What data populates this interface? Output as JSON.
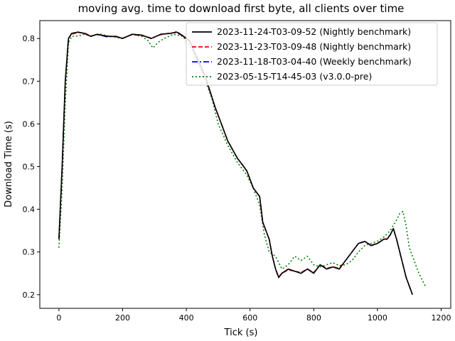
{
  "chart_data": {
    "type": "line",
    "title": "moving avg. time to download first byte, all clients over time",
    "xlabel": "Tick (s)",
    "ylabel": "Download Time (s)",
    "xlim": [
      -60,
      1230
    ],
    "ylim": [
      0.168,
      0.842
    ],
    "x_ticks": [
      0,
      200,
      400,
      600,
      800,
      1000,
      1200
    ],
    "x_tick_labels": [
      "0",
      "200",
      "400",
      "600",
      "800",
      "1000",
      "1200"
    ],
    "y_ticks": [
      0.2,
      0.3,
      0.4,
      0.5,
      0.6,
      0.7,
      0.8
    ],
    "y_tick_labels": [
      "0.2",
      "0.3",
      "0.4",
      "0.5",
      "0.6",
      "0.7",
      "0.8"
    ],
    "grid": false,
    "legend_position": "top-right",
    "series": [
      {
        "name": "2023-11-24-T03-09-52 (Nightly benchmark)",
        "color": "#000000",
        "style": "solid",
        "x": [
          0,
          10,
          20,
          30,
          40,
          60,
          80,
          100,
          120,
          150,
          180,
          200,
          230,
          260,
          290,
          320,
          350,
          370,
          390,
          410,
          430,
          460,
          490,
          510,
          530,
          560,
          590,
          610,
          630,
          640,
          650,
          660,
          670,
          680,
          690,
          700,
          720,
          740,
          760,
          780,
          800,
          820,
          840,
          860,
          880,
          900,
          920,
          940,
          960,
          980,
          1000,
          1020,
          1030,
          1040,
          1050,
          1060,
          1070,
          1080,
          1090,
          1100,
          1110
        ],
        "y": [
          0.33,
          0.5,
          0.7,
          0.8,
          0.812,
          0.815,
          0.812,
          0.805,
          0.81,
          0.805,
          0.805,
          0.8,
          0.81,
          0.808,
          0.8,
          0.81,
          0.812,
          0.815,
          0.806,
          0.795,
          0.76,
          0.71,
          0.64,
          0.6,
          0.56,
          0.52,
          0.49,
          0.45,
          0.43,
          0.37,
          0.35,
          0.33,
          0.29,
          0.26,
          0.24,
          0.25,
          0.26,
          0.255,
          0.25,
          0.26,
          0.25,
          0.27,
          0.26,
          0.265,
          0.26,
          0.28,
          0.3,
          0.32,
          0.325,
          0.315,
          0.32,
          0.33,
          0.33,
          0.34,
          0.355,
          0.33,
          0.3,
          0.27,
          0.24,
          0.22,
          0.2
        ]
      },
      {
        "name": "2023-11-23-T03-09-48 (Nightly benchmark)",
        "color": "#ff0000",
        "style": "dashed",
        "x": [
          0,
          10,
          20,
          30,
          40,
          60,
          80,
          100,
          120,
          150,
          180,
          200,
          230,
          260,
          290,
          320,
          350,
          370,
          390,
          410,
          430,
          460,
          490,
          510,
          530,
          560,
          590,
          610,
          630,
          640,
          650,
          660,
          670,
          680,
          690,
          700,
          720,
          740,
          760,
          780,
          800,
          820,
          840,
          860,
          880,
          900,
          920,
          940,
          960,
          980,
          1000,
          1020,
          1030,
          1040,
          1050,
          1060,
          1070,
          1080,
          1090,
          1100,
          1110
        ],
        "y": [
          0.335,
          0.5,
          0.7,
          0.8,
          0.81,
          0.814,
          0.813,
          0.806,
          0.809,
          0.806,
          0.804,
          0.801,
          0.809,
          0.807,
          0.801,
          0.809,
          0.813,
          0.814,
          0.805,
          0.794,
          0.76,
          0.71,
          0.64,
          0.6,
          0.56,
          0.52,
          0.49,
          0.45,
          0.43,
          0.37,
          0.35,
          0.33,
          0.29,
          0.26,
          0.242,
          0.25,
          0.258,
          0.255,
          0.252,
          0.26,
          0.252,
          0.27,
          0.262,
          0.265,
          0.262,
          0.28,
          0.3,
          0.32,
          0.324,
          0.316,
          0.32,
          0.33,
          0.331,
          0.34,
          0.354,
          0.33,
          0.3,
          0.27,
          0.24,
          0.22,
          0.2
        ]
      },
      {
        "name": "2023-11-18-T03-04-40 (Weekly benchmark)",
        "color": "#0000ff",
        "style": "dashdot",
        "x": [
          0,
          10,
          20,
          30,
          40,
          60,
          80,
          100,
          120,
          150,
          180,
          200,
          230,
          260,
          290,
          320,
          350,
          370,
          390,
          410,
          430,
          460,
          490,
          510,
          530,
          560,
          590,
          610,
          630,
          640,
          650,
          660,
          670,
          680,
          690,
          700,
          720,
          740,
          760,
          780,
          800,
          820,
          840,
          860,
          880,
          900,
          920,
          940,
          960,
          980,
          1000,
          1020,
          1030,
          1040,
          1050,
          1060,
          1070,
          1080,
          1090,
          1100,
          1110
        ],
        "y": [
          0.33,
          0.5,
          0.7,
          0.8,
          0.812,
          0.815,
          0.812,
          0.805,
          0.81,
          0.804,
          0.805,
          0.8,
          0.81,
          0.808,
          0.8,
          0.81,
          0.812,
          0.816,
          0.806,
          0.795,
          0.76,
          0.71,
          0.64,
          0.6,
          0.56,
          0.52,
          0.49,
          0.45,
          0.43,
          0.37,
          0.35,
          0.33,
          0.29,
          0.26,
          0.24,
          0.25,
          0.26,
          0.255,
          0.25,
          0.26,
          0.25,
          0.27,
          0.26,
          0.265,
          0.26,
          0.28,
          0.3,
          0.32,
          0.325,
          0.315,
          0.32,
          0.33,
          0.33,
          0.34,
          0.355,
          0.33,
          0.3,
          0.27,
          0.24,
          0.22,
          0.2
        ]
      },
      {
        "name": "2023-05-15-T14-45-03 (v3.0.0-pre)",
        "color": "#008000",
        "style": "dotted",
        "x": [
          0,
          10,
          20,
          30,
          40,
          60,
          80,
          100,
          130,
          160,
          200,
          230,
          260,
          280,
          295,
          310,
          330,
          360,
          390,
          420,
          450,
          480,
          500,
          530,
          560,
          590,
          610,
          630,
          645,
          660,
          680,
          700,
          720,
          740,
          760,
          780,
          800,
          820,
          840,
          860,
          880,
          900,
          920,
          940,
          960,
          980,
          1000,
          1020,
          1040,
          1060,
          1070,
          1080,
          1090,
          1100,
          1110,
          1120,
          1130,
          1140,
          1150
        ],
        "y": [
          0.31,
          0.45,
          0.65,
          0.79,
          0.805,
          0.806,
          0.81,
          0.806,
          0.81,
          0.805,
          0.8,
          0.81,
          0.805,
          0.795,
          0.778,
          0.79,
          0.8,
          0.81,
          0.805,
          0.77,
          0.72,
          0.66,
          0.6,
          0.55,
          0.51,
          0.48,
          0.45,
          0.41,
          0.34,
          0.3,
          0.29,
          0.26,
          0.27,
          0.29,
          0.28,
          0.29,
          0.27,
          0.265,
          0.27,
          0.275,
          0.268,
          0.27,
          0.28,
          0.3,
          0.315,
          0.32,
          0.325,
          0.335,
          0.35,
          0.375,
          0.39,
          0.395,
          0.36,
          0.31,
          0.29,
          0.27,
          0.25,
          0.235,
          0.22
        ]
      }
    ]
  }
}
